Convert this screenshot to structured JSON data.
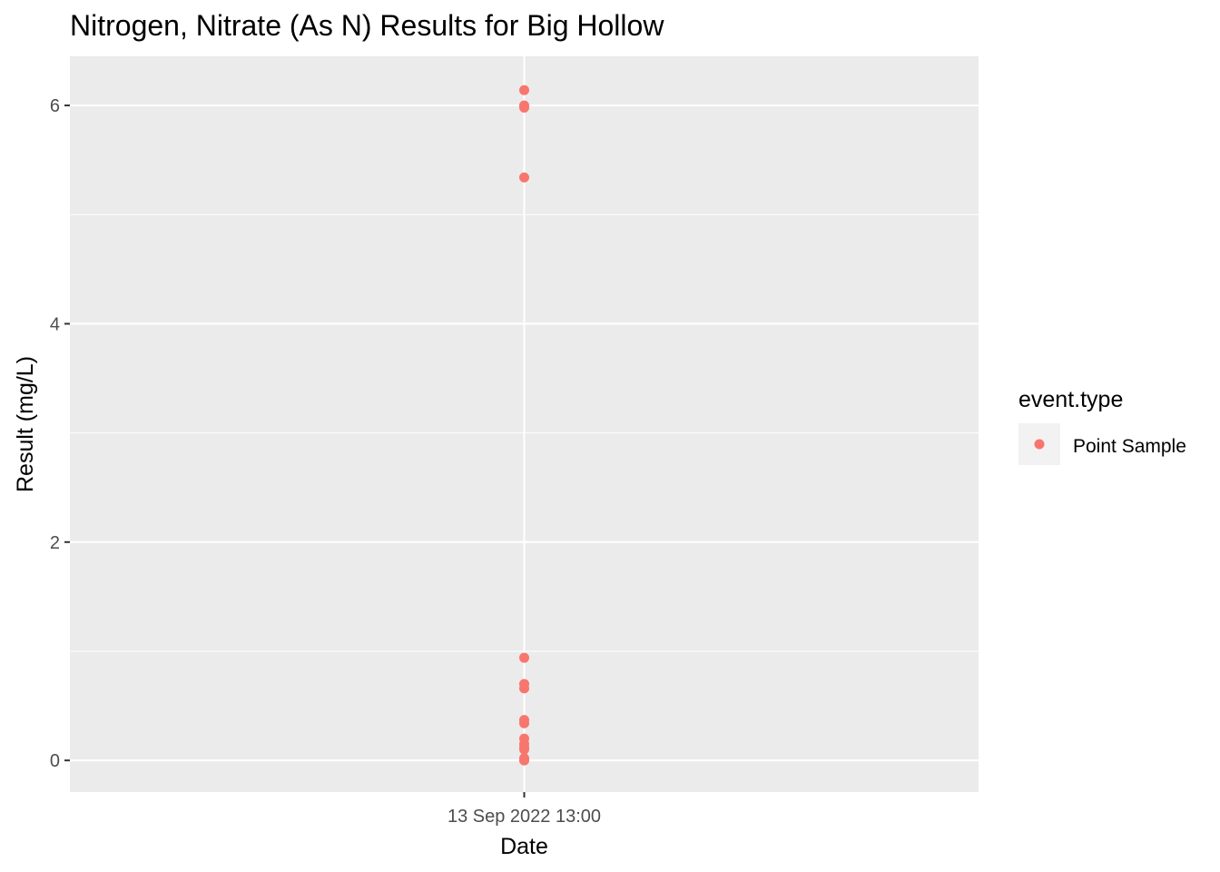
{
  "chart_data": {
    "type": "scatter",
    "title": "Nitrogen, Nitrate (As N) Results for Big Hollow",
    "xlabel": "Date",
    "ylabel": "Result (mg/L)",
    "x_tick_labels": [
      "13 Sep 2022 13:00"
    ],
    "y_ticks": [
      0,
      2,
      4,
      6
    ],
    "ylim": [
      -0.29,
      6.45
    ],
    "grid": true,
    "legend": {
      "title": "event.type",
      "position": "right",
      "entries": [
        {
          "label": "Point Sample",
          "color": "#f8766d"
        }
      ]
    },
    "series": [
      {
        "name": "Point Sample",
        "color": "#f8766d",
        "x": [
          "13 Sep 2022 13:00",
          "13 Sep 2022 13:00",
          "13 Sep 2022 13:00",
          "13 Sep 2022 13:00",
          "13 Sep 2022 13:00",
          "13 Sep 2022 13:00",
          "13 Sep 2022 13:00",
          "13 Sep 2022 13:00",
          "13 Sep 2022 13:00",
          "13 Sep 2022 13:00",
          "13 Sep 2022 13:00",
          "13 Sep 2022 13:00",
          "13 Sep 2022 13:00",
          "13 Sep 2022 13:00",
          "13 Sep 2022 13:00",
          "13 Sep 2022 13:00"
        ],
        "y": [
          6.14,
          6.0,
          5.98,
          5.34,
          0.94,
          0.7,
          0.66,
          0.37,
          0.34,
          0.2,
          0.15,
          0.12,
          0.1,
          0.02,
          0.0,
          0.0
        ]
      }
    ]
  },
  "colors": {
    "panel_background": "#ebebeb",
    "grid": "#ffffff",
    "point": "#f8766d"
  }
}
